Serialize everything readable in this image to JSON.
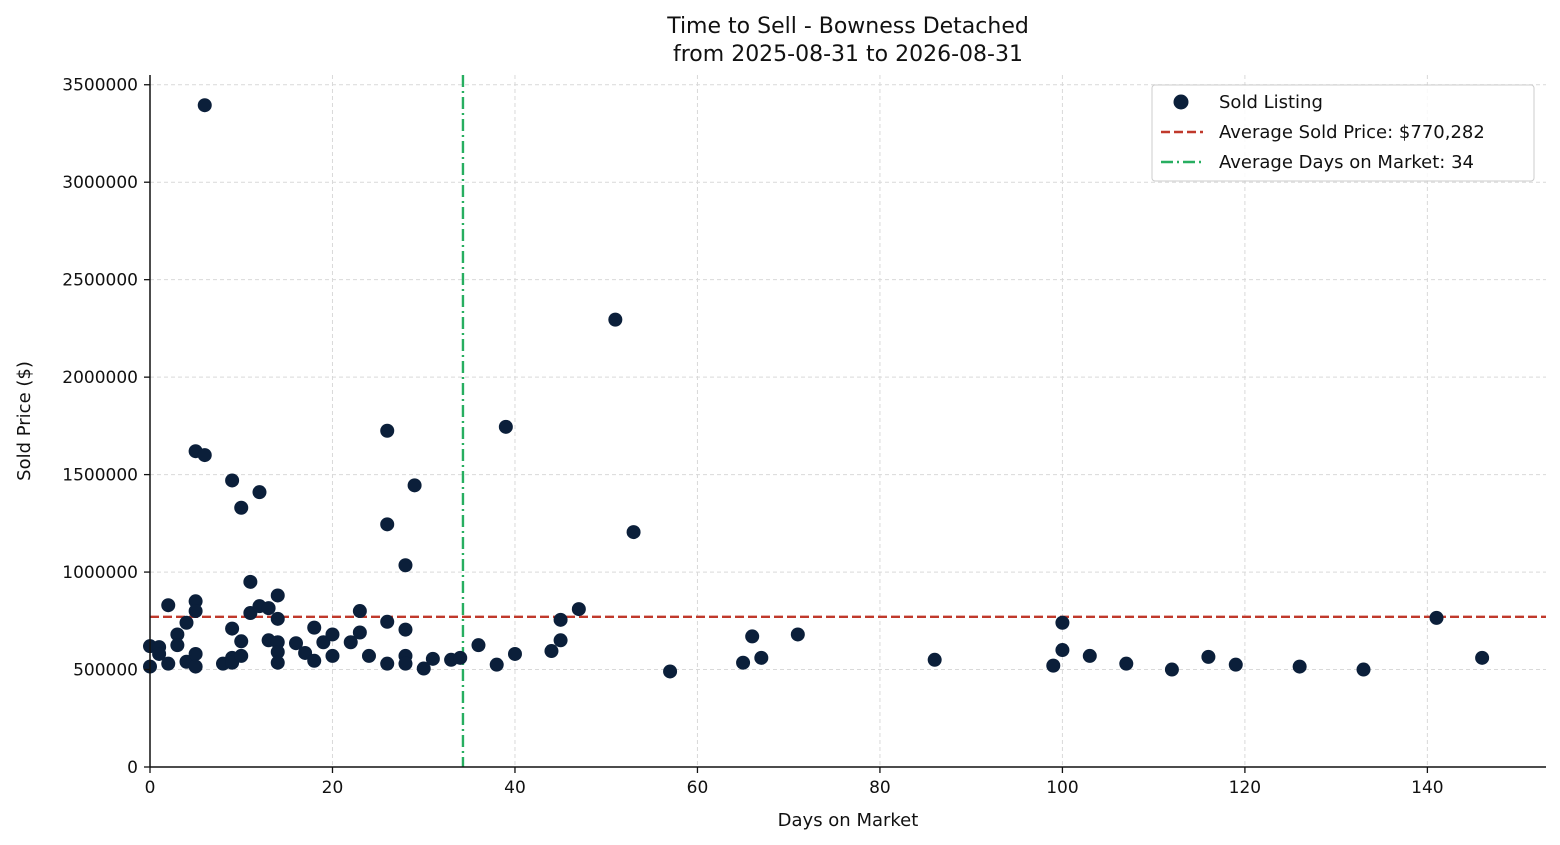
{
  "chart_data": {
    "type": "scatter",
    "title": "Time to Sell - Bowness Detached",
    "subtitle": "from 2025-08-31 to 2026-08-31",
    "xlabel": "Days on Market",
    "ylabel": "Sold Price ($)",
    "xlim": [
      0,
      153
    ],
    "ylim": [
      0,
      3550000
    ],
    "x_ticks": [
      0,
      20,
      40,
      60,
      80,
      100,
      120,
      140
    ],
    "y_ticks": [
      0,
      500000,
      1000000,
      1500000,
      2000000,
      2500000,
      3000000,
      3500000
    ],
    "grid": true,
    "legend_position": "top-right",
    "colors": {
      "points": "#0b1f3a",
      "avg_price_line": "#c0392b",
      "avg_days_line": "#27ae60"
    },
    "series": [
      {
        "name": "Sold Listing",
        "points": [
          [
            0,
            620000
          ],
          [
            0,
            515000
          ],
          [
            1,
            615000
          ],
          [
            1,
            580000
          ],
          [
            2,
            830000
          ],
          [
            2,
            530000
          ],
          [
            3,
            680000
          ],
          [
            3,
            625000
          ],
          [
            4,
            740000
          ],
          [
            4,
            540000
          ],
          [
            5,
            1620000
          ],
          [
            5,
            850000
          ],
          [
            5,
            800000
          ],
          [
            5,
            580000
          ],
          [
            5,
            515000
          ],
          [
            6,
            3395000
          ],
          [
            6,
            1600000
          ],
          [
            8,
            530000
          ],
          [
            9,
            1470000
          ],
          [
            9,
            710000
          ],
          [
            9,
            560000
          ],
          [
            9,
            535000
          ],
          [
            10,
            1330000
          ],
          [
            10,
            645000
          ],
          [
            10,
            570000
          ],
          [
            11,
            950000
          ],
          [
            11,
            790000
          ],
          [
            12,
            1410000
          ],
          [
            12,
            825000
          ],
          [
            13,
            815000
          ],
          [
            13,
            650000
          ],
          [
            14,
            880000
          ],
          [
            14,
            760000
          ],
          [
            14,
            640000
          ],
          [
            14,
            590000
          ],
          [
            14,
            535000
          ],
          [
            16,
            635000
          ],
          [
            17,
            585000
          ],
          [
            18,
            715000
          ],
          [
            18,
            545000
          ],
          [
            19,
            640000
          ],
          [
            20,
            680000
          ],
          [
            20,
            570000
          ],
          [
            22,
            640000
          ],
          [
            23,
            800000
          ],
          [
            23,
            690000
          ],
          [
            24,
            570000
          ],
          [
            26,
            1725000
          ],
          [
            26,
            1245000
          ],
          [
            26,
            745000
          ],
          [
            26,
            530000
          ],
          [
            28,
            1035000
          ],
          [
            28,
            705000
          ],
          [
            28,
            570000
          ],
          [
            28,
            530000
          ],
          [
            29,
            1445000
          ],
          [
            30,
            505000
          ],
          [
            31,
            555000
          ],
          [
            33,
            550000
          ],
          [
            34,
            560000
          ],
          [
            36,
            625000
          ],
          [
            38,
            525000
          ],
          [
            39,
            1745000
          ],
          [
            40,
            580000
          ],
          [
            44,
            595000
          ],
          [
            45,
            755000
          ],
          [
            45,
            650000
          ],
          [
            47,
            810000
          ],
          [
            51,
            2295000
          ],
          [
            53,
            1205000
          ],
          [
            57,
            490000
          ],
          [
            65,
            535000
          ],
          [
            66,
            670000
          ],
          [
            67,
            560000
          ],
          [
            71,
            680000
          ],
          [
            86,
            550000
          ],
          [
            99,
            520000
          ],
          [
            100,
            740000
          ],
          [
            100,
            600000
          ],
          [
            103,
            570000
          ],
          [
            107,
            530000
          ],
          [
            112,
            500000
          ],
          [
            116,
            565000
          ],
          [
            119,
            525000
          ],
          [
            126,
            515000
          ],
          [
            133,
            500000
          ],
          [
            141,
            765000
          ],
          [
            146,
            560000
          ]
        ]
      }
    ],
    "reference_lines": [
      {
        "name": "Average Sold Price: $770,282",
        "orientation": "horizontal",
        "value": 770282,
        "style": "dashed"
      },
      {
        "name": "Average Days on Market: 34",
        "orientation": "vertical",
        "value": 34.3,
        "style": "dashdot"
      }
    ]
  }
}
